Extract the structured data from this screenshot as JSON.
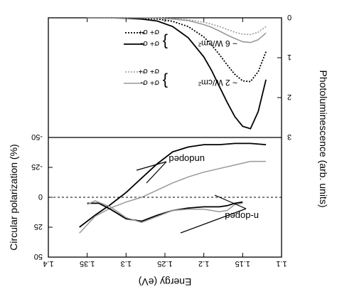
{
  "chart_data": {
    "type": "line",
    "x_axis": {
      "label": "Energy (eV)",
      "range": [
        1.1,
        1.4
      ],
      "ticks": [
        "1.1",
        "1.15",
        "1.2",
        "1.25",
        "1.3",
        "1.35",
        "1.4"
      ]
    },
    "left_axis": {
      "label": "Photoluminescence (arb. units)",
      "range": [
        0,
        3
      ],
      "ticks": [
        "0",
        "1",
        "2",
        "3"
      ]
    },
    "right_axis": {
      "label": "Circular polarization (%)",
      "range": [
        -50,
        50
      ],
      "ticks": [
        "-50",
        "-25",
        "0",
        "25",
        "50"
      ]
    },
    "annotations": [
      "n-doped",
      "undoped"
    ],
    "legend": {
      "placement": "bottom-left",
      "groups": [
        {
          "label": "~ 2 W/cm²",
          "entries": [
            "σ+ σ-",
            "σ+ σ+"
          ]
        },
        {
          "label": "~ 6 W/cm²",
          "entries": [
            "σ+ σ-",
            "σ+ σ+"
          ]
        }
      ]
    },
    "photoluminescence_series": [
      {
        "name": "~ 6 W/cm² σ+ σ-",
        "color": "#000000",
        "dash": "solid",
        "x": [
          1.12,
          1.13,
          1.14,
          1.15,
          1.16,
          1.17,
          1.18,
          1.19,
          1.2,
          1.22,
          1.24,
          1.26,
          1.28,
          1.3,
          1.32,
          1.35
        ],
        "y": [
          1.55,
          2.35,
          2.78,
          2.72,
          2.48,
          2.12,
          1.72,
          1.32,
          0.98,
          0.5,
          0.22,
          0.08,
          0.03,
          0.01,
          0.0,
          0.0
        ]
      },
      {
        "name": "~ 6 W/cm² σ+ σ+",
        "color": "#000000",
        "dash": "dotted",
        "x": [
          1.12,
          1.13,
          1.14,
          1.15,
          1.16,
          1.17,
          1.18,
          1.19,
          1.2,
          1.22,
          1.24,
          1.26,
          1.28,
          1.3,
          1.32,
          1.35
        ],
        "y": [
          0.85,
          1.35,
          1.6,
          1.58,
          1.42,
          1.18,
          0.92,
          0.68,
          0.48,
          0.22,
          0.09,
          0.03,
          0.01,
          0.0,
          0.0,
          0.0
        ]
      },
      {
        "name": "~ 2 W/cm² σ+ σ-",
        "color": "#999999",
        "dash": "solid",
        "x": [
          1.12,
          1.13,
          1.14,
          1.15,
          1.16,
          1.17,
          1.18,
          1.19,
          1.2,
          1.22,
          1.24,
          1.26,
          1.28,
          1.3,
          1.32,
          1.35
        ],
        "y": [
          0.38,
          0.55,
          0.62,
          0.6,
          0.52,
          0.43,
          0.33,
          0.24,
          0.17,
          0.07,
          0.03,
          0.01,
          0.0,
          0.0,
          0.0,
          0.0
        ]
      },
      {
        "name": "~ 2 W/cm² σ+ σ+",
        "color": "#999999",
        "dash": "dotted",
        "x": [
          1.12,
          1.13,
          1.14,
          1.15,
          1.16,
          1.17,
          1.18,
          1.19,
          1.2,
          1.22,
          1.24,
          1.26,
          1.28,
          1.3,
          1.32,
          1.35
        ],
        "y": [
          0.22,
          0.36,
          0.42,
          0.41,
          0.36,
          0.29,
          0.22,
          0.16,
          0.11,
          0.05,
          0.02,
          0.0,
          0.0,
          0.0,
          0.0,
          0.0
        ]
      }
    ],
    "polarization_series": [
      {
        "name": "n-doped (6 W/cm²)",
        "color": "#000000",
        "x": [
          1.12,
          1.14,
          1.16,
          1.18,
          1.2,
          1.22,
          1.24,
          1.26,
          1.28,
          1.3,
          1.32,
          1.34,
          1.36
        ],
        "y": [
          -44,
          -45,
          -45,
          -44,
          -44,
          -42,
          -38,
          -28,
          -16,
          -4,
          6,
          15,
          25
        ]
      },
      {
        "name": "n-doped (2 W/cm²)",
        "color": "#999999",
        "x": [
          1.12,
          1.14,
          1.16,
          1.18,
          1.2,
          1.22,
          1.24,
          1.26,
          1.28,
          1.3,
          1.32,
          1.34,
          1.36
        ],
        "y": [
          -30,
          -30,
          -27,
          -24,
          -21,
          -17,
          -12,
          -6,
          0,
          4,
          9,
          16,
          30
        ]
      },
      {
        "name": "undoped (6 W/cm²)",
        "color": "#000000",
        "x": [
          1.15,
          1.16,
          1.17,
          1.18,
          1.19,
          1.2,
          1.22,
          1.24,
          1.26,
          1.28,
          1.3,
          1.32,
          1.335,
          1.35
        ],
        "y": [
          4,
          5,
          7,
          8,
          8,
          8,
          9,
          11,
          15,
          20,
          18,
          10,
          5,
          5
        ]
      },
      {
        "name": "undoped (2 W/cm²)",
        "color": "#999999",
        "x": [
          1.15,
          1.16,
          1.17,
          1.18,
          1.19,
          1.2,
          1.22,
          1.24,
          1.26,
          1.28,
          1.3,
          1.32,
          1.34,
          1.35
        ],
        "y": [
          5,
          6,
          11,
          12,
          11,
          10,
          10,
          11,
          16,
          21,
          17,
          8,
          3,
          6
        ]
      }
    ]
  }
}
